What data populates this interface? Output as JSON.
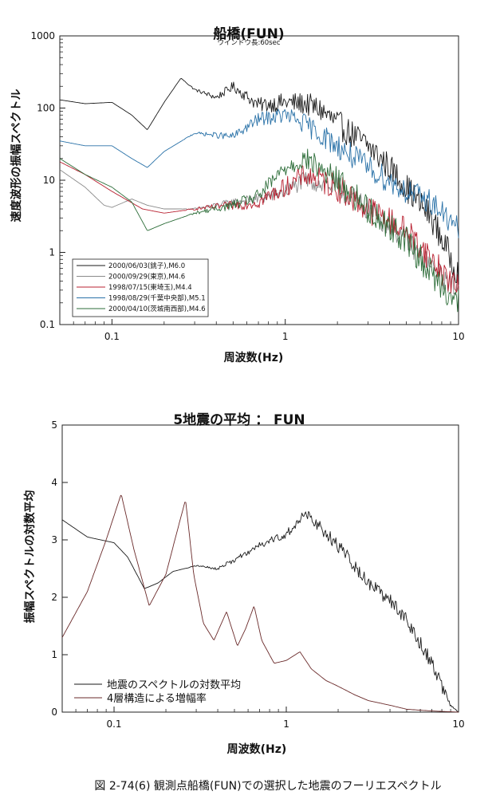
{
  "chart_data": [
    {
      "type": "line",
      "title": "船橋(FUN)",
      "subtitle": "ウインドウ長:60sec",
      "xlabel": "周波数(Hz)",
      "ylabel": "速度波形の振幅スペクトル",
      "xscale": "log",
      "yscale": "log",
      "xlim": [
        0.05,
        10
      ],
      "ylim": [
        0.1,
        1000
      ],
      "x_ticks": [
        {
          "v": 0.1,
          "label": "0.1"
        },
        {
          "v": 1,
          "label": "1"
        },
        {
          "v": 10,
          "label": "10"
        }
      ],
      "y_ticks": [
        {
          "v": 0.1,
          "label": "0.1"
        },
        {
          "v": 1,
          "label": "1"
        },
        {
          "v": 10,
          "label": "10"
        },
        {
          "v": 100,
          "label": "100"
        },
        {
          "v": 1000,
          "label": "1000"
        }
      ],
      "legend_position": "bottom-left",
      "series": [
        {
          "name": "2000/06/03(銚子),M6.0",
          "color": "#1a1a1a",
          "noise": 0.2,
          "x": [
            0.05,
            0.07,
            0.1,
            0.13,
            0.16,
            0.2,
            0.25,
            0.3,
            0.4,
            0.5,
            0.7,
            1.0,
            1.3,
            1.6,
            2.0,
            3.0,
            4.0,
            5.0,
            7.0,
            10.0
          ],
          "y": [
            130,
            115,
            120,
            80,
            50,
            120,
            260,
            180,
            140,
            200,
            110,
            120,
            115,
            95,
            60,
            30,
            15,
            8,
            3,
            0.5
          ]
        },
        {
          "name": "2000/09/29(東京),M4.6",
          "color": "#8a8a8a",
          "noise": 0.16,
          "x": [
            0.05,
            0.07,
            0.09,
            0.1,
            0.13,
            0.16,
            0.2,
            0.3,
            0.5,
            0.7,
            1.0,
            1.3,
            2.0,
            3.0,
            5.0,
            7.0,
            10.0
          ],
          "y": [
            14,
            8,
            4.5,
            4.2,
            5.5,
            4.5,
            4.0,
            4.0,
            5.0,
            5.5,
            7,
            10,
            8,
            4,
            1.5,
            0.6,
            0.3
          ]
        },
        {
          "name": "1998/07/15(東埼玉),M4.4",
          "color": "#b82030",
          "noise": 0.2,
          "x": [
            0.05,
            0.07,
            0.1,
            0.15,
            0.2,
            0.3,
            0.5,
            0.7,
            1.0,
            1.3,
            2.0,
            3.0,
            5.0,
            7.0,
            10.0
          ],
          "y": [
            18,
            12,
            7,
            4,
            3.5,
            4,
            4.5,
            5,
            8,
            12,
            8,
            4,
            2,
            0.8,
            0.3
          ]
        },
        {
          "name": "1998/08/29(千葉中央部),M5.1",
          "color": "#2a72a8",
          "noise": 0.18,
          "x": [
            0.05,
            0.07,
            0.1,
            0.13,
            0.16,
            0.2,
            0.3,
            0.5,
            0.7,
            1.0,
            1.3,
            2.0,
            3.0,
            5.0,
            7.0,
            10.0
          ],
          "y": [
            35,
            30,
            30,
            20,
            15,
            25,
            45,
            40,
            70,
            80,
            60,
            30,
            15,
            7,
            5,
            2
          ]
        },
        {
          "name": "2000/04/10(茨城南西部),M4.6",
          "color": "#2e6e3a",
          "noise": 0.2,
          "x": [
            0.05,
            0.07,
            0.1,
            0.13,
            0.16,
            0.2,
            0.3,
            0.5,
            0.7,
            1.0,
            1.3,
            2.0,
            3.0,
            5.0,
            7.0,
            10.0
          ],
          "y": [
            20,
            12,
            8,
            5,
            2.0,
            2.5,
            3.5,
            4.5,
            6,
            15,
            20,
            10,
            4,
            1.5,
            0.5,
            0.2
          ]
        }
      ]
    },
    {
      "type": "line",
      "title": "5地震の平均 ： FUN",
      "xlabel": "周波数(Hz)",
      "ylabel": "振幅スペクトルの対数平均",
      "xscale": "log",
      "xlim": [
        0.05,
        10
      ],
      "ylim": [
        0,
        5
      ],
      "x_ticks": [
        {
          "v": 0.1,
          "label": "0.1"
        },
        {
          "v": 1,
          "label": "1"
        },
        {
          "v": 10,
          "label": "10"
        }
      ],
      "y_ticks": [
        {
          "v": 0,
          "label": "0"
        },
        {
          "v": 1,
          "label": "1"
        },
        {
          "v": 2,
          "label": "2"
        },
        {
          "v": 3,
          "label": "3"
        },
        {
          "v": 4,
          "label": "4"
        },
        {
          "v": 5,
          "label": "5"
        }
      ],
      "legend_position": "bottom-left",
      "series": [
        {
          "name": "地震のスペクトルの対数平均",
          "color": "#1a1a1a",
          "noise": 0.12,
          "x": [
            0.05,
            0.07,
            0.1,
            0.12,
            0.15,
            0.18,
            0.22,
            0.3,
            0.4,
            0.5,
            0.7,
            1.0,
            1.3,
            1.6,
            2.0,
            3.0,
            4.0,
            5.0,
            6.0,
            7.0,
            8.0,
            9.0,
            10.0
          ],
          "y": [
            3.35,
            3.05,
            2.95,
            2.7,
            2.15,
            2.25,
            2.45,
            2.55,
            2.5,
            2.65,
            2.9,
            3.1,
            3.45,
            3.2,
            2.9,
            2.25,
            1.95,
            1.6,
            1.2,
            0.85,
            0.45,
            0.12,
            0.0
          ]
        },
        {
          "name": "4層構造による増幅率",
          "color": "#6a2a2a",
          "noise": 0,
          "x": [
            0.05,
            0.07,
            0.09,
            0.11,
            0.13,
            0.16,
            0.2,
            0.23,
            0.26,
            0.29,
            0.33,
            0.38,
            0.45,
            0.52,
            0.58,
            0.65,
            0.72,
            0.85,
            1.0,
            1.2,
            1.4,
            1.7,
            2.0,
            2.5,
            3.0,
            4.0,
            5.0,
            7.0,
            10.0
          ],
          "y": [
            1.3,
            2.1,
            3.0,
            3.8,
            2.85,
            1.85,
            2.4,
            3.1,
            3.7,
            2.4,
            1.55,
            1.25,
            1.75,
            1.15,
            1.45,
            1.85,
            1.25,
            0.85,
            0.9,
            1.05,
            0.75,
            0.55,
            0.45,
            0.3,
            0.2,
            0.12,
            0.05,
            0.02,
            0.0
          ]
        }
      ]
    }
  ],
  "figure_caption": "図 2-74(6) 観測点船橋(FUN)での選択した地震のフーリエスペクトル"
}
